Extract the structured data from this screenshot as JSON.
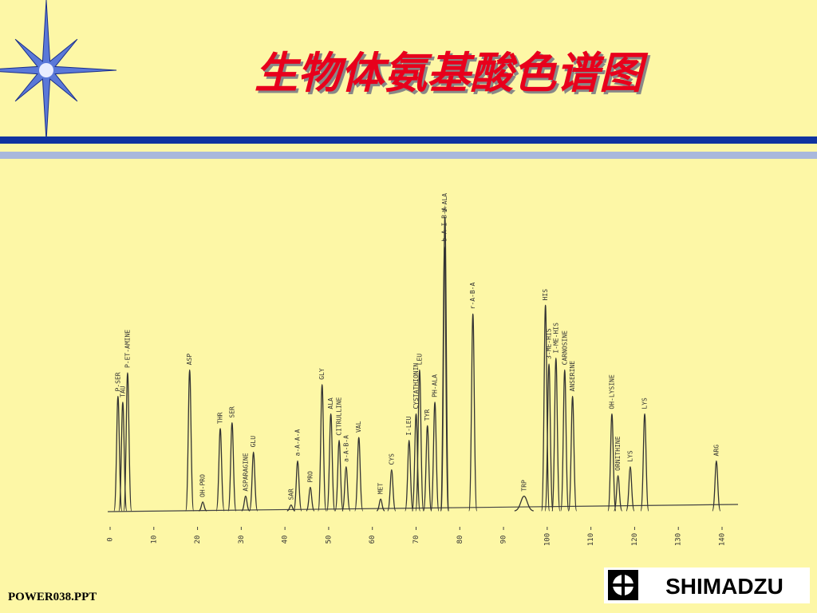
{
  "header": {
    "title": "生物体氨基酸色谱图"
  },
  "chart_data": {
    "type": "peaks",
    "categories": [
      "P-SER",
      "TAU",
      "P-ET-AMINE",
      "ASP",
      "OH-PRO",
      "THR",
      "SER",
      "ASPARAGINE",
      "GLU",
      "SAR",
      "a-A-A-A",
      "PRO",
      "GLY",
      "ALA",
      "CITRULLINE",
      "a-A-B-A",
      "VAL",
      "MET",
      "CYS",
      "I-LEU",
      "CYSTATHIONIN",
      "LEU",
      "TYR",
      "PH-ALA",
      "b-A-I-B-A",
      "b-ALA",
      "r-A-B-A",
      "TRP",
      "HIS",
      "3-ME-HIS",
      "I-ME-HIS",
      "CARNOSINE",
      "ANSERINE",
      "OH-LYSINE",
      "ORNITHINE",
      "LYS",
      "LYS",
      "ARG"
    ],
    "x": [
      1.8,
      2.9,
      4.0,
      18.2,
      21.2,
      25.2,
      27.9,
      31.0,
      32.8,
      41.4,
      42.9,
      45.8,
      48.5,
      50.5,
      52.4,
      54.0,
      56.9,
      61.9,
      64.4,
      68.4,
      70.0,
      70.8,
      72.6,
      74.3,
      76.5,
      76.6,
      83.0,
      94.7,
      99.6,
      100.4,
      102.0,
      104.0,
      105.8,
      114.8,
      116.2,
      119.0,
      122.3,
      138.7
    ],
    "values": [
      39,
      37,
      47,
      48,
      3,
      28,
      30,
      5,
      20,
      2,
      17,
      8,
      43,
      33,
      24,
      15,
      25,
      4,
      14,
      24,
      33,
      48,
      29,
      37,
      90,
      100,
      67,
      5,
      70,
      50,
      52,
      48,
      39,
      33,
      12,
      15,
      33,
      17
    ],
    "xlim": [
      0,
      140
    ],
    "ylim": [
      0,
      100
    ],
    "xticks": [
      0,
      10,
      20,
      30,
      40,
      50,
      60,
      70,
      80,
      90,
      100,
      110,
      120,
      130,
      140
    ],
    "color": "#333333"
  },
  "footer": {
    "file": "POWER038.PPT",
    "logo": "SHIMADZU"
  }
}
